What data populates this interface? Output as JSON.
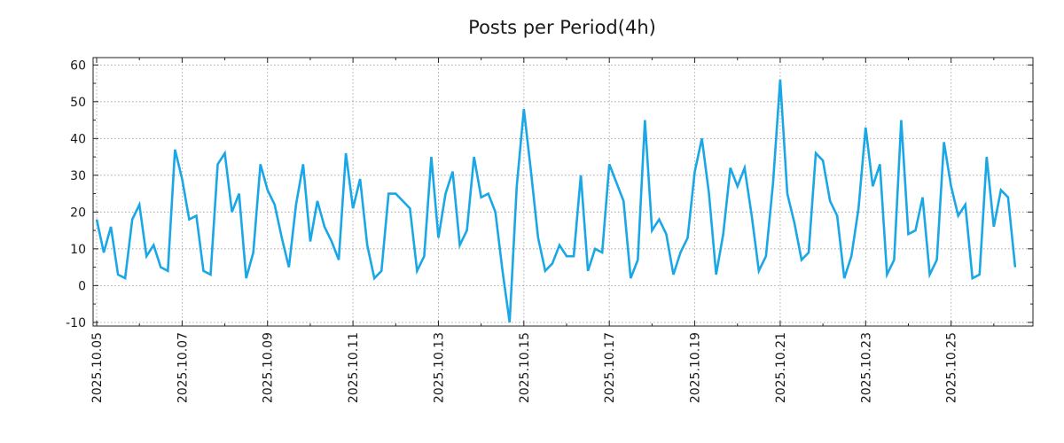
{
  "chart_data": {
    "type": "line",
    "title": "Posts per Period(4h)",
    "xlabel": "",
    "ylabel": "",
    "ylim": [
      -11,
      62
    ],
    "yticks": [
      -10,
      0,
      10,
      20,
      30,
      40,
      50,
      60
    ],
    "ytick_labels": [
      "-10",
      "0",
      "10",
      "20",
      "30",
      "40",
      "50",
      "60"
    ],
    "xlim": [
      -0.5,
      131.5
    ],
    "xtick_positions": [
      0,
      12,
      24,
      36,
      48,
      60,
      72,
      84,
      96,
      108,
      120
    ],
    "xtick_labels": [
      "2025.10.05",
      "2025.10.07",
      "2025.10.09",
      "2025.10.11",
      "2025.10.13",
      "2025.10.15",
      "2025.10.17",
      "2025.10.19",
      "2025.10.21",
      "2025.10.23",
      "2025.10.25"
    ],
    "grid": true,
    "series": [
      {
        "name": "Posts",
        "color": "#1aa7e6",
        "values": [
          18,
          9,
          16,
          3,
          2,
          18,
          22,
          8,
          11,
          5,
          4,
          37,
          29,
          18,
          19,
          4,
          3,
          33,
          36,
          20,
          25,
          2,
          9,
          33,
          26,
          22,
          13,
          5,
          22,
          33,
          12,
          23,
          16,
          12,
          7,
          36,
          21,
          29,
          11,
          2,
          4,
          25,
          25,
          23,
          21,
          4,
          8,
          35,
          13,
          25,
          31,
          11,
          15,
          35,
          24,
          25,
          20,
          4,
          -10,
          27,
          48,
          31,
          13,
          4,
          6,
          11,
          8,
          8,
          30,
          4,
          10,
          9,
          33,
          28,
          23,
          2,
          7,
          45,
          15,
          18,
          14,
          3,
          9,
          13,
          31,
          40,
          25,
          3,
          14,
          32,
          27,
          32,
          19,
          4,
          8,
          28,
          56,
          25,
          17,
          7,
          9,
          36,
          34,
          23,
          19,
          2,
          8,
          21,
          43,
          27,
          33,
          3,
          7,
          45,
          14,
          15,
          24,
          3,
          7,
          39,
          27,
          19,
          22,
          2,
          3,
          35,
          16,
          26,
          24,
          5
        ]
      }
    ]
  }
}
